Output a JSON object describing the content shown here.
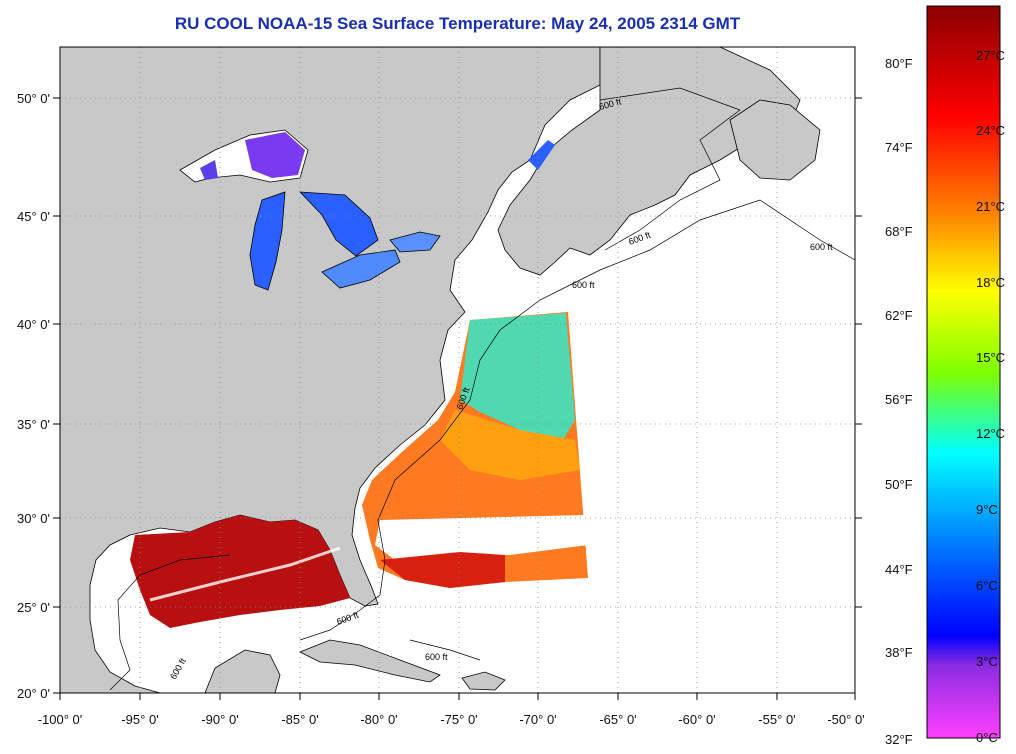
{
  "title": "RU COOL  NOAA-15  Sea Surface Temperature:  May 24, 2005 2314 GMT",
  "map": {
    "lon_ticks": [
      "-100° 0'",
      "-95° 0'",
      "-90° 0'",
      "-85° 0'",
      "-80° 0'",
      "-75° 0'",
      "-70° 0'",
      "-65° 0'",
      "-60° 0'",
      "-55° 0'",
      "-50° 0'"
    ],
    "lat_ticks": [
      "50° 0'",
      "45° 0'",
      "40° 0'",
      "35° 0'",
      "30° 0'",
      "25° 0'",
      "20° 0'"
    ],
    "contour_label": "600 ft",
    "colors": {
      "land": "#c8c8c8",
      "ocean": "#ffffff",
      "hot": "#b81010",
      "warm": "#ff4a10",
      "mild": "#ff9a10",
      "cool": "#40d0a0",
      "lake": "#2a60ff",
      "lake_cold": "#7a3af0"
    }
  },
  "colorbar": {
    "fahrenheit": [
      "80°F",
      "74°F",
      "68°F",
      "62°F",
      "56°F",
      "50°F",
      "44°F",
      "38°F",
      "32°F"
    ],
    "celsius": [
      "27°C",
      "24°C",
      "21°C",
      "18°C",
      "15°C",
      "12°C",
      "9°C",
      "6°C",
      "3°C",
      "0°C"
    ],
    "stops": [
      "#8b0000",
      "#ff0000",
      "#ff7f00",
      "#ffff00",
      "#7fff00",
      "#00ffff",
      "#0080ff",
      "#0000ff",
      "#8a2be2",
      "#ff40ff"
    ]
  }
}
